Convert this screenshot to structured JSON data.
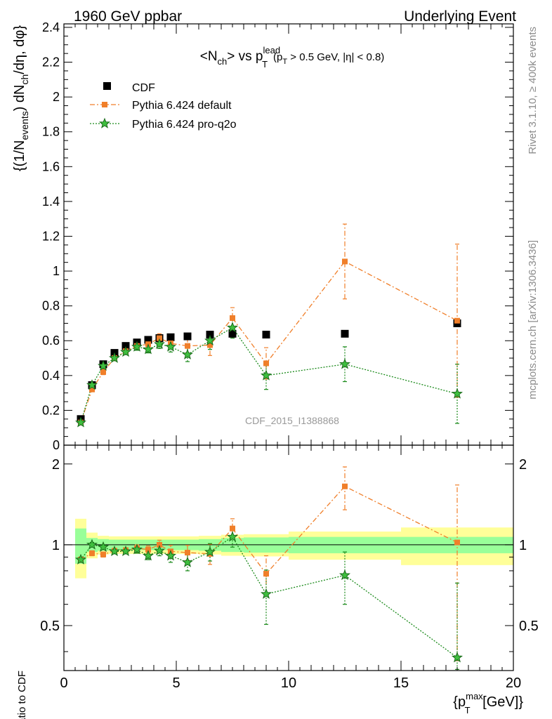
{
  "header": {
    "left_label": "1960 GeV ppbar",
    "right_label": "Underlying Event"
  },
  "side_labels": {
    "rivet": "Rivet 3.1.10, ≥ 400k events",
    "mcplots": "mcplots.cern.ch [arXiv:1306.3436]"
  },
  "watermark": "CDF_2015_I1388868",
  "colors": {
    "cdf": "#000000",
    "pythia_default": "#f07f2a",
    "pythia_proq2o": "#1a8a1a",
    "band_inner": "#99ff99",
    "band_outer": "#ffff99"
  },
  "chart_data": [
    {
      "type": "scatter",
      "panel": "main",
      "title": {
        "main": "<N",
        "sub1": "ch",
        "mid": "> vs p",
        "sup": "lead",
        "sub2": "T",
        "cut": "(p",
        "cut_sub": "T",
        "cut_rest": " > 0.5 GeV, |η| < 0.8)"
      },
      "ylabel": {
        "p1": "{(1/N",
        "s1": "events",
        "p2": ") dN",
        "s2": "ch",
        "p3": "/dη, dφ}"
      },
      "xlabel": {
        "p1": "{p",
        "sup": "max",
        "sub": "T",
        "p2": " [GeV]}"
      },
      "xlim": [
        0,
        20
      ],
      "ylim": [
        0,
        2.42
      ],
      "yticks": [
        "0",
        "0.2",
        "0.4",
        "0.6",
        "0.8",
        "1",
        "1.2",
        "1.4",
        "1.6",
        "1.8",
        "2",
        "2.2",
        "2.4"
      ],
      "xticks": [
        "0",
        "5",
        "10",
        "15",
        "20"
      ],
      "legend": {
        "position": "top-left",
        "entries": [
          "CDF",
          "Pythia 6.424 default",
          "Pythia 6.424 pro-q2o"
        ]
      },
      "series": [
        {
          "name": "CDF",
          "marker": "square",
          "x": [
            0.75,
            1.25,
            1.75,
            2.25,
            2.75,
            3.25,
            3.75,
            4.25,
            4.75,
            5.5,
            6.5,
            7.5,
            9.0,
            12.5,
            17.5
          ],
          "y": [
            0.15,
            0.345,
            0.465,
            0.53,
            0.57,
            0.59,
            0.605,
            0.615,
            0.62,
            0.625,
            0.635,
            0.64,
            0.635,
            0.64,
            0.7
          ]
        },
        {
          "name": "Pythia 6.424 default",
          "marker": "square-small",
          "x": [
            0.75,
            1.25,
            1.75,
            2.25,
            2.75,
            3.25,
            3.75,
            4.25,
            4.75,
            5.5,
            6.5,
            7.5,
            9.0,
            12.5,
            17.5
          ],
          "y": [
            0.13,
            0.32,
            0.42,
            0.5,
            0.54,
            0.57,
            0.58,
            0.615,
            0.585,
            0.57,
            0.575,
            0.73,
            0.47,
            1.055,
            0.715
          ],
          "err": [
            0.01,
            0.01,
            0.015,
            0.015,
            0.015,
            0.02,
            0.02,
            0.025,
            0.03,
            0.04,
            0.06,
            0.06,
            0.09,
            0.215,
            0.44
          ]
        },
        {
          "name": "Pythia 6.424 pro-q2o",
          "marker": "star",
          "x": [
            0.75,
            1.25,
            1.75,
            2.25,
            2.75,
            3.25,
            3.75,
            4.25,
            4.75,
            5.5,
            6.5,
            7.5,
            9.0,
            12.5,
            17.5
          ],
          "y": [
            0.13,
            0.345,
            0.455,
            0.5,
            0.535,
            0.565,
            0.55,
            0.58,
            0.565,
            0.52,
            0.6,
            0.675,
            0.4,
            0.465,
            0.295
          ],
          "err": [
            0.01,
            0.01,
            0.015,
            0.015,
            0.015,
            0.02,
            0.02,
            0.025,
            0.03,
            0.04,
            0.05,
            0.06,
            0.08,
            0.1,
            0.17
          ]
        }
      ]
    },
    {
      "type": "scatter",
      "panel": "ratio",
      "ylabel": "Ratio to CDF",
      "xlim": [
        0,
        20
      ],
      "ylim": [
        0.34,
        2.35
      ],
      "yscale": "log",
      "yticks": [
        "0.5",
        "1",
        "2"
      ],
      "reference_line": 1,
      "bands": {
        "edges": [
          0.5,
          1.0,
          1.5,
          2.0,
          2.5,
          3.0,
          3.5,
          4.0,
          4.5,
          5.0,
          6.0,
          7.0,
          8.0,
          10.0,
          15.0,
          20.0
        ],
        "inner": [
          0.15,
          0.06,
          0.05,
          0.045,
          0.045,
          0.045,
          0.045,
          0.045,
          0.045,
          0.045,
          0.05,
          0.06,
          0.065,
          0.07,
          0.07
        ],
        "outer": [
          0.25,
          0.11,
          0.08,
          0.075,
          0.075,
          0.075,
          0.075,
          0.075,
          0.075,
          0.075,
          0.08,
          0.09,
          0.095,
          0.12,
          0.16
        ]
      },
      "series": [
        {
          "name": "Pythia 6.424 default",
          "x": [
            0.75,
            1.25,
            1.75,
            2.25,
            2.75,
            3.25,
            3.75,
            4.25,
            4.75,
            5.5,
            6.5,
            7.5,
            9.0,
            12.5,
            17.5
          ],
          "y": [
            0.88,
            0.93,
            0.92,
            0.95,
            0.955,
            0.97,
            0.96,
            1.0,
            0.945,
            0.935,
            0.925,
            1.15,
            0.78,
            1.65,
            1.02
          ],
          "err": [
            0.02,
            0.02,
            0.02,
            0.02,
            0.02,
            0.03,
            0.03,
            0.04,
            0.05,
            0.06,
            0.08,
            0.1,
            0.13,
            0.3,
            0.65
          ]
        },
        {
          "name": "Pythia 6.424 pro-q2o",
          "x": [
            0.75,
            1.25,
            1.75,
            2.25,
            2.75,
            3.25,
            3.75,
            4.25,
            4.75,
            5.5,
            6.5,
            7.5,
            9.0,
            12.5,
            17.5
          ],
          "y": [
            0.88,
            1.0,
            0.98,
            0.945,
            0.945,
            0.96,
            0.91,
            0.95,
            0.91,
            0.86,
            0.94,
            1.07,
            0.655,
            0.77,
            0.38
          ],
          "err": [
            0.02,
            0.02,
            0.02,
            0.02,
            0.02,
            0.03,
            0.03,
            0.04,
            0.05,
            0.06,
            0.07,
            0.09,
            0.15,
            0.17,
            0.34
          ]
        }
      ]
    }
  ]
}
